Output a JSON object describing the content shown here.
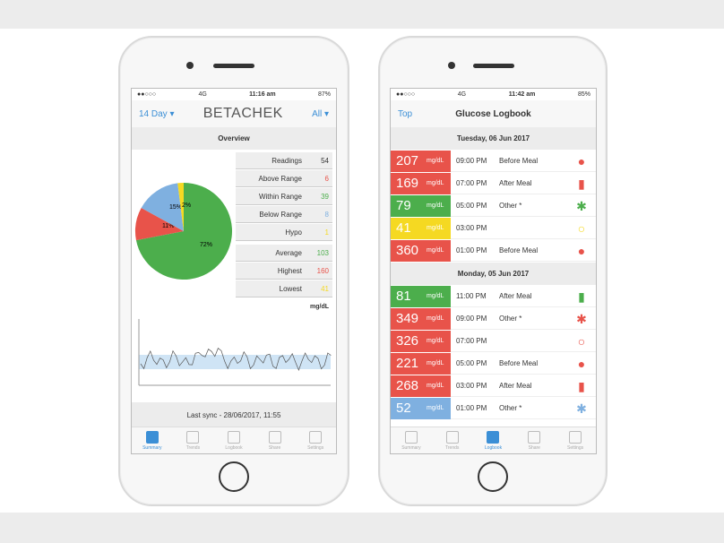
{
  "colors": {
    "red": "#e8534a",
    "green": "#4cae4c",
    "yellow": "#f5d922",
    "blue": "#7fb0e0",
    "accent": "#3b8fd6"
  },
  "summary": {
    "status": {
      "carrier": "4G",
      "time": "11:16 am",
      "battery": "87%"
    },
    "header": {
      "left": "14 Day ▾",
      "logo": "BETACHEK",
      "right": "All ▾"
    },
    "overview_label": "Overview",
    "stats": [
      {
        "label": "Readings",
        "value": "54",
        "color": "#333"
      },
      {
        "label": "Above Range",
        "value": "6",
        "color": "#e8534a"
      },
      {
        "label": "Within Range",
        "value": "39",
        "color": "#4cae4c"
      },
      {
        "label": "Below Range",
        "value": "8",
        "color": "#7fb0e0"
      },
      {
        "label": "Hypo",
        "value": "1",
        "color": "#f5d922"
      },
      {
        "label": "Average",
        "value": "103",
        "color": "#4cae4c"
      },
      {
        "label": "Highest",
        "value": "160",
        "color": "#e8534a"
      },
      {
        "label": "Lowest",
        "value": "41",
        "color": "#f5d922"
      }
    ],
    "unit": "mg/dL",
    "chart_data": {
      "type": "pie",
      "slices": [
        {
          "label": "72%",
          "value": 72,
          "color": "#4cae4c"
        },
        {
          "label": "11%",
          "value": 11,
          "color": "#e8534a"
        },
        {
          "label": "15%",
          "value": 15,
          "color": "#7fb0e0"
        },
        {
          "label": "2%",
          "value": 2,
          "color": "#f5d922"
        }
      ]
    },
    "last_sync": "Last sync - 28/06/2017, 11:55",
    "tabs": [
      "Summary",
      "Trends",
      "Logbook",
      "Share",
      "Settings"
    ]
  },
  "logbook": {
    "status": {
      "carrier": "4G",
      "time": "11:42 am",
      "battery": "85%"
    },
    "header": {
      "left": "Top",
      "title": "Glucose Logbook"
    },
    "days": [
      {
        "date": "Tuesday, 06 Jun 2017",
        "entries": [
          {
            "value": "207",
            "unit": "mg/dL",
            "time": "09:00 PM",
            "tag": "Before Meal",
            "color": "#e8534a",
            "icon": "apple-icon"
          },
          {
            "value": "169",
            "unit": "mg/dL",
            "time": "07:00 PM",
            "tag": "After Meal",
            "color": "#e8534a",
            "icon": "apple-core-icon"
          },
          {
            "value": "79",
            "unit": "mg/dL",
            "time": "05:00 PM",
            "tag": "Other *",
            "color": "#4cae4c",
            "icon": "asterisk-icon"
          },
          {
            "value": "41",
            "unit": "mg/dL",
            "time": "03:00 PM",
            "tag": "",
            "color": "#f5d922",
            "icon": "circle-icon"
          },
          {
            "value": "360",
            "unit": "mg/dL",
            "time": "01:00 PM",
            "tag": "Before Meal",
            "color": "#e8534a",
            "icon": "apple-icon"
          }
        ]
      },
      {
        "date": "Monday, 05 Jun 2017",
        "entries": [
          {
            "value": "81",
            "unit": "mg/dL",
            "time": "11:00 PM",
            "tag": "After Meal",
            "color": "#4cae4c",
            "icon": "apple-core-icon"
          },
          {
            "value": "349",
            "unit": "mg/dL",
            "time": "09:00 PM",
            "tag": "Other *",
            "color": "#e8534a",
            "icon": "asterisk-icon"
          },
          {
            "value": "326",
            "unit": "mg/dL",
            "time": "07:00 PM",
            "tag": "",
            "color": "#e8534a",
            "icon": "circle-icon"
          },
          {
            "value": "221",
            "unit": "mg/dL",
            "time": "05:00 PM",
            "tag": "Before Meal",
            "color": "#e8534a",
            "icon": "apple-icon"
          },
          {
            "value": "268",
            "unit": "mg/dL",
            "time": "03:00 PM",
            "tag": "After Meal",
            "color": "#e8534a",
            "icon": "apple-core-icon"
          },
          {
            "value": "52",
            "unit": "mg/dL",
            "time": "01:00 PM",
            "tag": "Other *",
            "color": "#7fb0e0",
            "icon": "asterisk-icon"
          }
        ]
      }
    ],
    "tabs": [
      "Summary",
      "Trends",
      "Logbook",
      "Share",
      "Settings"
    ]
  }
}
